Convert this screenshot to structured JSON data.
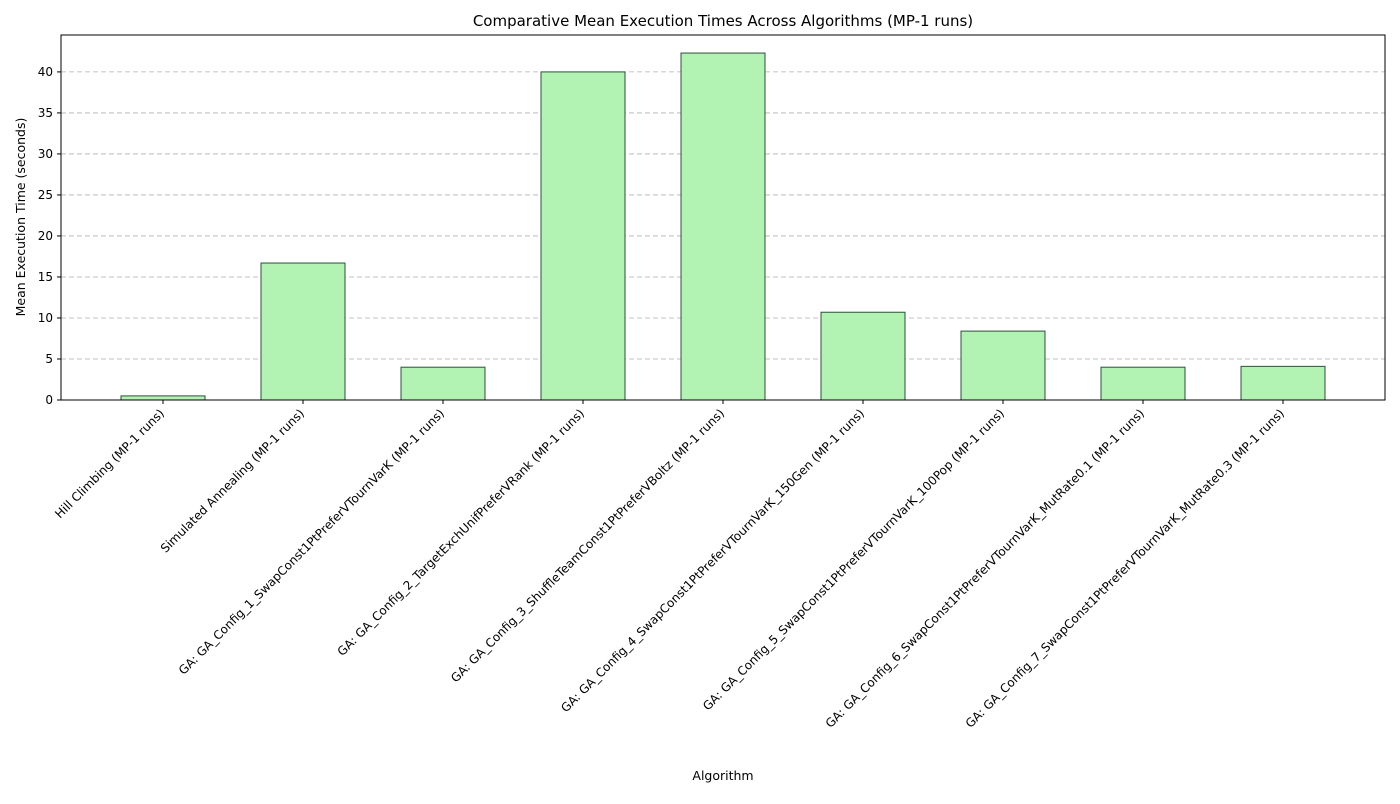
{
  "colors": {
    "bar_fill": "#b2f2b2",
    "bar_edge": "#2f4f3f",
    "grid": "#b0b0b0",
    "axis": "#000000"
  },
  "chart_data": {
    "type": "bar",
    "title": "Comparative Mean Execution Times Across Algorithms (MP-1 runs)",
    "xlabel": "Algorithm",
    "ylabel": "Mean Execution Time (seconds)",
    "ylim": [
      0,
      44.5
    ],
    "yticks": [
      0,
      5,
      10,
      15,
      20,
      25,
      30,
      35,
      40
    ],
    "grid": "y-dashed",
    "categories": [
      "Hill Climbing (MP-1 runs)",
      "Simulated Annealing (MP-1 runs)",
      "GA: GA_Config_1_SwapConst1PtPreferVTournVarK (MP-1 runs)",
      "GA: GA_Config_2_TargetExchUnifPreferVRank (MP-1 runs)",
      "GA: GA_Config_3_ShuffleTeamConst1PtPreferVBoltz (MP-1 runs)",
      "GA: GA_Config_4_SwapConst1PtPreferVTournVarK_150Gen (MP-1 runs)",
      "GA: GA_Config_5_SwapConst1PtPreferVTournVarK_100Pop (MP-1 runs)",
      "GA: GA_Config_6_SwapConst1PtPreferVTournVarK_MutRate0.1 (MP-1 runs)",
      "GA: GA_Config_7_SwapConst1PtPreferVTournVarK_MutRate0.3 (MP-1 runs)"
    ],
    "values": [
      0.5,
      16.7,
      4.0,
      40.0,
      42.3,
      10.7,
      8.4,
      4.0,
      4.1
    ]
  }
}
